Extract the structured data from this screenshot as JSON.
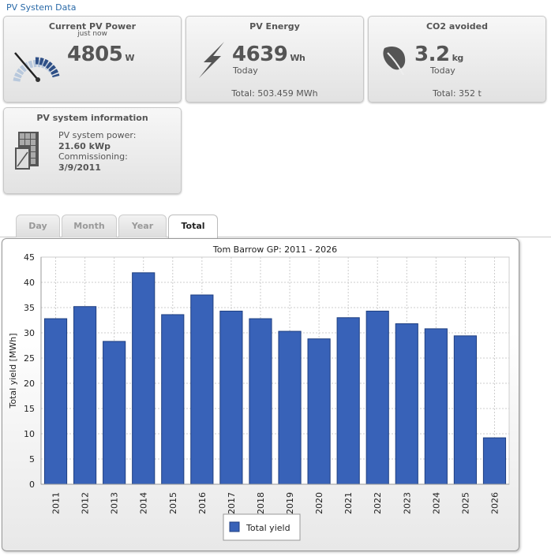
{
  "header": {
    "title": "PV System Data"
  },
  "cards": {
    "power": {
      "title": "Current PV Power",
      "subtitle": "just now",
      "value": "4805",
      "unit": "W",
      "icon": "gauge-icon"
    },
    "energy": {
      "title": "PV Energy",
      "value": "4639",
      "unit": "Wh",
      "period": "Today",
      "total": "Total: 503.459 MWh",
      "icon": "lightning-icon"
    },
    "co2": {
      "title": "CO2 avoided",
      "value": "3.2",
      "unit": "kg",
      "period": "Today",
      "total": "Total: 352 t",
      "icon": "leaf-icon"
    },
    "info": {
      "title": "PV system information",
      "power_label": "PV system power:",
      "power_value": "21.60 kWp",
      "commissioning_label": "Commissioning:",
      "commissioning_value": "3/9/2011",
      "icon": "solar-panel-icon"
    }
  },
  "tabs": [
    {
      "label": "Day"
    },
    {
      "label": "Month"
    },
    {
      "label": "Year"
    },
    {
      "label": "Total",
      "active": true
    }
  ],
  "chart_data": {
    "type": "bar",
    "title": "Tom Barrow GP: 2011 - 2026",
    "xlabel": "",
    "ylabel": "Total yield [MWh]",
    "ylim": [
      0,
      45
    ],
    "yticks": [
      0,
      5,
      10,
      15,
      20,
      25,
      30,
      35,
      40,
      45
    ],
    "grid": true,
    "legend": "bottom",
    "categories": [
      "2011",
      "2012",
      "2013",
      "2014",
      "2015",
      "2016",
      "2017",
      "2018",
      "2019",
      "2020",
      "2021",
      "2022",
      "2023",
      "2024",
      "2025",
      "2026"
    ],
    "series": [
      {
        "name": "Total yield",
        "color": "#3862b8",
        "values": [
          32.8,
          35.2,
          28.3,
          41.9,
          33.6,
          37.5,
          34.3,
          32.8,
          30.3,
          28.8,
          33.0,
          34.3,
          31.8,
          30.8,
          29.4,
          9.2
        ]
      }
    ]
  }
}
